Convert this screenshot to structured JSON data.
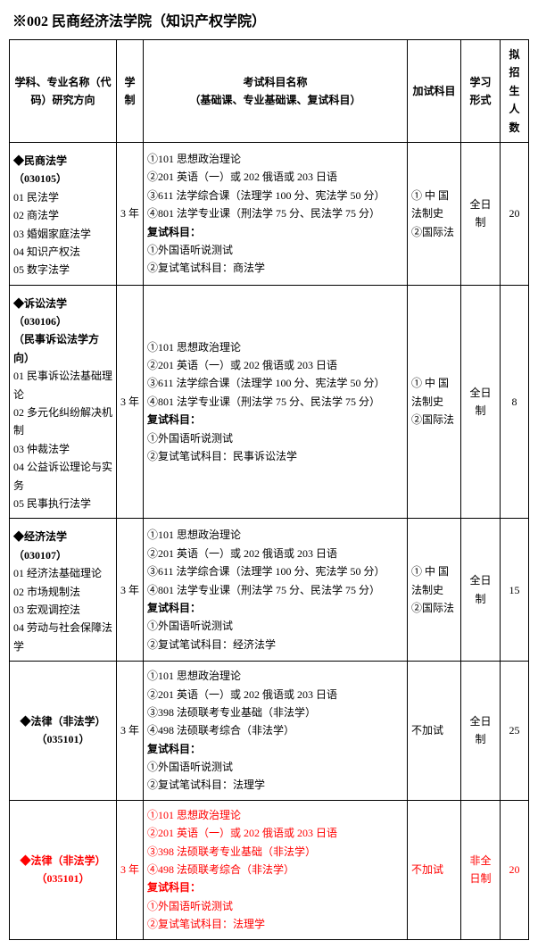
{
  "title": "※002 民商经济法学院（知识产权学院）",
  "headers": {
    "subject": "学科、专业名称（代码）研究方向",
    "duration": "学制",
    "exam": "考试科目名称",
    "exam_sub": "（基础课、专业基础课、复试科目）",
    "extra": "加试科目",
    "mode": "学习形式",
    "num": "拟招生人数"
  },
  "rows": [
    {
      "subject_heading": "◆民商法学（030105）",
      "subject_lines": [
        "01 民法学",
        "02 商法学",
        "03 婚姻家庭法学",
        "04 知识产权法",
        "05 数字法学"
      ],
      "duration": "3 年",
      "exam_lines": [
        "①101 思想政治理论",
        "②201 英语（一）或 202 俄语或 203 日语",
        "③611 法学综合课（法理学 100 分、宪法学 50 分）",
        "④801 法学专业课（刑法学 75 分、民法学 75 分）"
      ],
      "retest_label": "复试科目：",
      "retest_lines": [
        "①外国语听说测试",
        "②复试笔试科目：商法学"
      ],
      "extra": "① 中 国 法制史\n②国际法",
      "mode": "全日制",
      "num": "20",
      "red": false
    },
    {
      "subject_heading": "◆诉讼法学（030106）",
      "subject_subheading": "（民事诉讼法学方向）",
      "subject_lines": [
        "01 民事诉讼法基础理论",
        "02 多元化纠纷解决机制",
        "03 仲裁法学",
        "04 公益诉讼理论与实务",
        "05 民事执行法学"
      ],
      "duration": "3 年",
      "exam_lines": [
        "①101 思想政治理论",
        "②201 英语（一）或 202 俄语或 203 日语",
        "③611 法学综合课（法理学 100 分、宪法学 50 分）",
        "④801 法学专业课（刑法学 75 分、民法学 75 分）"
      ],
      "retest_label": "复试科目：",
      "retest_lines": [
        "①外国语听说测试",
        "②复试笔试科目：民事诉讼法学"
      ],
      "extra": "① 中 国 法制史\n②国际法",
      "mode": "全日制",
      "num": "8",
      "red": false
    },
    {
      "subject_heading": "◆经济法学（030107）",
      "subject_lines": [
        "01 经济法基础理论",
        "02 市场规制法",
        "03 宏观调控法",
        "04 劳动与社会保障法学"
      ],
      "duration": "3 年",
      "exam_lines": [
        "①101 思想政治理论",
        "②201 英语（一）或 202 俄语或 203 日语",
        "③611 法学综合课（法理学 100 分、宪法学 50 分）",
        "④801 法学专业课（刑法学 75 分、民法学 75 分）"
      ],
      "retest_label": "复试科目：",
      "retest_lines": [
        "①外国语听说测试",
        "②复试笔试科目：经济法学"
      ],
      "extra": "① 中 国 法制史\n②国际法",
      "mode": "全日制",
      "num": "15",
      "red": false
    },
    {
      "subject_heading": "◆法律（非法学）",
      "subject_code": "（035101）",
      "subject_lines": [],
      "duration": "3 年",
      "exam_lines": [
        "①101 思想政治理论",
        "②201 英语（一）或 202 俄语或 203 日语",
        "③398 法硕联考专业基础（非法学）",
        "④498 法硕联考综合（非法学）"
      ],
      "retest_label": "复试科目：",
      "retest_lines": [
        "①外国语听说测试",
        "②复试笔试科目：法理学"
      ],
      "extra": "不加试",
      "mode": "全日制",
      "num": "25",
      "red": false,
      "center_subject": true
    },
    {
      "subject_heading": "◆法律（非法学）",
      "subject_code": "（035101）",
      "subject_lines": [],
      "duration": "3 年",
      "exam_lines": [
        "①101 思想政治理论",
        "②201 英语（一）或 202 俄语或 203 日语",
        "③398 法硕联考专业基础（非法学）",
        "④498 法硕联考综合（非法学）"
      ],
      "retest_label": "复试科目：",
      "retest_lines": [
        "①外国语听说测试",
        "②复试笔试科目：法理学"
      ],
      "extra": "不加试",
      "mode": "非全日制",
      "num": "20",
      "red": true,
      "center_subject": true
    }
  ]
}
